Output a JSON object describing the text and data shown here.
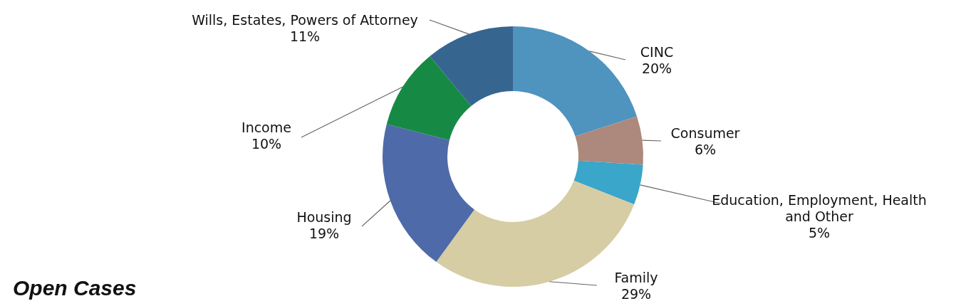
{
  "chart_data": {
    "type": "donut",
    "title": "Open Cases",
    "categories": [
      "CINC",
      "Consumer",
      "Education, Employment, Health and Other",
      "Family",
      "Housing",
      "Income",
      "Wills, Estates, Powers of Attorney"
    ],
    "values": [
      20,
      6,
      5,
      29,
      19,
      10,
      11
    ],
    "value_labels": [
      "20%",
      "6%",
      "5%",
      "29%",
      "19%",
      "10%",
      "11%"
    ],
    "colors": [
      "#4f93bf",
      "#ad887c",
      "#3aa6c9",
      "#d6cda4",
      "#4f6aa8",
      "#168a44",
      "#366690"
    ],
    "legend": false
  }
}
